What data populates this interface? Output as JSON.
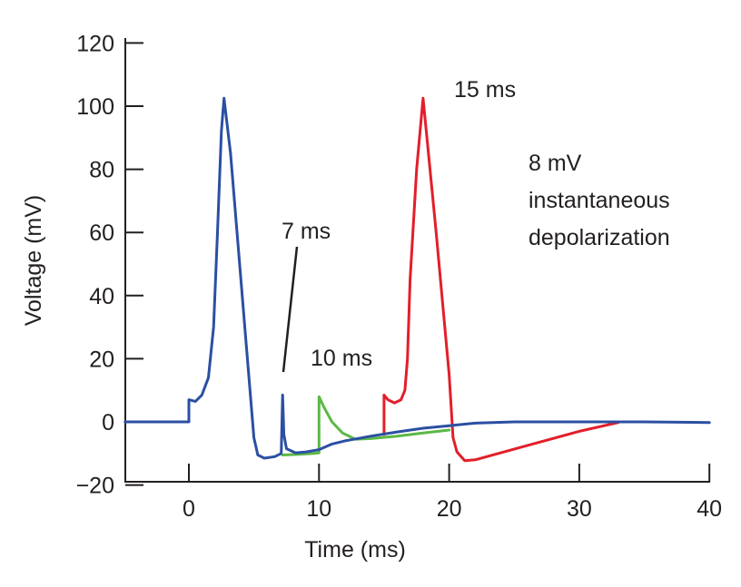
{
  "chart_data": {
    "type": "line",
    "title": "",
    "xlabel": "Time (ms)",
    "ylabel": "Voltage (mV)",
    "xlim": [
      -4.9,
      40
    ],
    "ylim": [
      -20,
      120
    ],
    "xticks": [
      0,
      10,
      20,
      30,
      40
    ],
    "xtick_labels": [
      "0",
      "10",
      "20",
      "30",
      "40"
    ],
    "yticks": [
      -20,
      0,
      20,
      40,
      60,
      80,
      100,
      120
    ],
    "ytick_labels": [
      "−20",
      "0",
      "20",
      "40",
      "60",
      "80",
      "100",
      "120"
    ],
    "grid": false,
    "legend": "none",
    "series": [
      {
        "name": "10 ms stimulus (subthreshold)",
        "color": "#5cb846",
        "x": [
          7.2,
          8.5,
          9.6,
          10.0,
          10.0,
          10.4,
          11.0,
          11.8,
          12.8,
          14.0,
          16.0,
          18.0,
          20.0
        ],
        "y": [
          -10.5,
          -10.3,
          -10.0,
          -9.8,
          8.0,
          4.5,
          0.0,
          -3.5,
          -5.5,
          -5.3,
          -4.5,
          -3.5,
          -2.6
        ]
      },
      {
        "name": "15 ms stimulus",
        "color": "#e31e2a",
        "x": [
          15.0,
          15.0,
          15.3,
          15.8,
          16.3,
          16.6,
          16.8,
          17.0,
          17.5,
          18.0,
          19.0,
          20.0,
          20.3,
          20.6,
          21.2,
          22.0,
          26.0,
          30.0,
          33.0
        ],
        "y": [
          -4.0,
          8.5,
          7.0,
          6.0,
          7.0,
          10.0,
          20.0,
          45.0,
          80.0,
          102.5,
          60.0,
          15.0,
          -5.0,
          -9.5,
          -12.3,
          -12.0,
          -7.5,
          -3.0,
          -0.2
        ]
      },
      {
        "name": "0 ms and 7 ms stimulus",
        "color": "#2b4fa3",
        "x": [
          -4.9,
          0.0,
          0.0,
          0.5,
          1.0,
          1.5,
          1.9,
          2.2,
          2.5,
          2.7,
          3.2,
          4.0,
          5.0,
          5.3,
          5.8,
          6.6,
          7.1,
          7.2,
          7.3,
          7.5,
          8.2,
          9.0,
          10.0,
          11.0,
          12.0,
          14.0,
          16.0,
          18.0,
          20.0,
          22.0,
          25.0,
          30.0,
          35.0,
          40.0
        ],
        "y": [
          0.0,
          0.0,
          7.0,
          6.5,
          8.5,
          14.0,
          30.0,
          60.0,
          92.0,
          102.5,
          85.0,
          45.0,
          -5.0,
          -10.5,
          -11.5,
          -11.0,
          -10.0,
          8.5,
          -4.0,
          -8.5,
          -9.8,
          -9.5,
          -8.8,
          -7.0,
          -6.0,
          -4.5,
          -3.2,
          -2.0,
          -1.2,
          -0.4,
          0.0,
          0.0,
          0.0,
          -0.2
        ]
      }
    ],
    "annotations": [
      {
        "text": "15 ms"
      },
      {
        "text": "7 ms"
      },
      {
        "text": "10 ms"
      },
      {
        "text_lines": [
          "8 mV",
          "instantaneous",
          "depolarization"
        ]
      }
    ]
  }
}
